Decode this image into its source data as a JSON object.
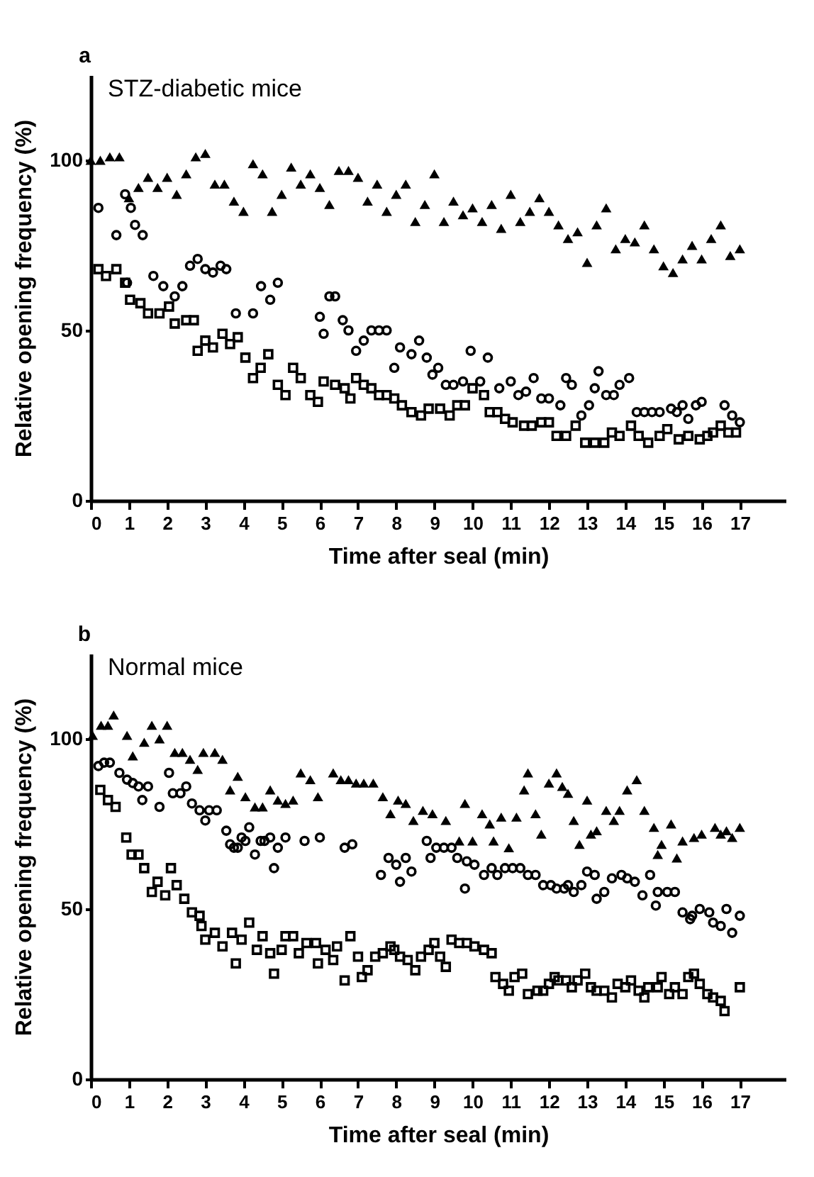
{
  "chart_data": [
    {
      "type": "scatter",
      "title": "STZ-diabetic mice",
      "annotations": [
        "a"
      ],
      "xlabel": "Time after seal (min)",
      "ylabel": "Relative opening frequency (%)",
      "xlim": [
        0,
        18.2
      ],
      "xticks": [
        0,
        1,
        2,
        3,
        4,
        5,
        6,
        7,
        8,
        9,
        10,
        11,
        12,
        13,
        14,
        15,
        16,
        17
      ],
      "ylim": [
        0,
        125
      ],
      "yticks": [
        0,
        50,
        100
      ],
      "grid": false,
      "legend": false,
      "series": [
        {
          "color": "#000000",
          "marker": "triangle",
          "x": [
            0,
            0.25,
            0.5,
            0.75,
            1,
            1.25,
            1.5,
            1.75,
            2,
            2.25,
            2.5,
            2.75,
            3,
            3.25,
            3.5,
            3.75,
            4,
            4.25,
            4.5,
            4.75,
            5,
            5.25,
            5.5,
            5.75,
            6,
            6.25,
            6.5,
            6.75,
            7,
            7.25,
            7.5,
            7.75,
            8,
            8.25,
            8.5,
            8.75,
            9,
            9.25,
            9.5,
            9.75,
            10,
            10.25,
            10.5,
            10.75,
            11,
            11.25,
            11.5,
            11.75,
            12,
            12.25,
            12.5,
            12.75,
            13,
            13.25,
            13.5,
            13.75,
            14,
            14.25,
            14.5,
            14.75,
            15,
            15.25,
            15.5,
            15.75,
            16,
            16.25,
            16.5,
            16.75,
            17
          ],
          "values": [
            100,
            100,
            101,
            101,
            89,
            92,
            95,
            92,
            95,
            90,
            96,
            101,
            102,
            93,
            93,
            88,
            85,
            99,
            96,
            85,
            90,
            98,
            93,
            96,
            92,
            87,
            97,
            97,
            95,
            88,
            93,
            85,
            90,
            93,
            82,
            87,
            96,
            82,
            88,
            84,
            86,
            82,
            87,
            80,
            90,
            82,
            85,
            89,
            85,
            81,
            77,
            79,
            70,
            81,
            86,
            74,
            77,
            76,
            81,
            74,
            69,
            67,
            71,
            75,
            71,
            77,
            81,
            72,
            74
          ]
        },
        {
          "color": "#000000",
          "marker": "circle",
          "x": [
            0.2,
            0.67,
            0.9,
            0.95,
            1.05,
            1.16,
            1.36,
            1.64,
            1.9,
            2.2,
            2.4,
            2.6,
            2.8,
            3.0,
            3.2,
            3.4,
            3.55,
            3.8,
            4.25,
            4.46,
            4.7,
            4.9,
            6.0,
            6.1,
            6.25,
            6.4,
            6.6,
            6.75,
            6.95,
            7.15,
            7.35,
            7.55,
            7.75,
            7.95,
            8.1,
            8.4,
            8.6,
            8.8,
            8.95,
            9.1,
            9.3,
            9.5,
            9.75,
            9.95,
            10.2,
            10.4,
            10.7,
            11.0,
            11.2,
            11.4,
            11.6,
            11.8,
            12.0,
            12.3,
            12.45,
            12.6,
            12.85,
            13.05,
            13.2,
            13.3,
            13.5,
            13.7,
            13.85,
            14.1,
            14.3,
            14.5,
            14.7,
            14.9,
            15.2,
            15.35,
            15.5,
            15.65,
            15.85,
            16.0,
            16.6,
            16.8,
            17.0
          ],
          "values": [
            86,
            78,
            90,
            64,
            86,
            81,
            78,
            66,
            63,
            60,
            63,
            69,
            71,
            68,
            67,
            69,
            68,
            55,
            55,
            63,
            59,
            64,
            54,
            49,
            60,
            60,
            53,
            50,
            44,
            47,
            50,
            50,
            50,
            39,
            45,
            43,
            47,
            42,
            37,
            39,
            34,
            34,
            35,
            44,
            35,
            42,
            33,
            35,
            31,
            32,
            36,
            30,
            30,
            28,
            36,
            34,
            25,
            28,
            33,
            38,
            31,
            31,
            34,
            36,
            26,
            26,
            26,
            26,
            27,
            26,
            28,
            24,
            28,
            29,
            28,
            25,
            23
          ]
        },
        {
          "color": "#000000",
          "marker": "square",
          "x": [
            0.2,
            0.4,
            0.67,
            0.9,
            1.03,
            1.3,
            1.5,
            1.8,
            2.05,
            2.2,
            2.5,
            2.7,
            2.8,
            3.0,
            3.2,
            3.45,
            3.65,
            3.85,
            4.05,
            4.25,
            4.45,
            4.65,
            4.9,
            5.1,
            5.3,
            5.5,
            5.75,
            5.95,
            6.1,
            6.4,
            6.65,
            6.8,
            6.95,
            7.15,
            7.35,
            7.55,
            7.75,
            7.95,
            8.15,
            8.4,
            8.65,
            8.85,
            9.15,
            9.4,
            9.6,
            9.8,
            10.0,
            10.3,
            10.45,
            10.65,
            10.85,
            11.05,
            11.35,
            11.55,
            11.8,
            12.0,
            12.2,
            12.45,
            12.7,
            12.95,
            13.2,
            13.45,
            13.65,
            13.85,
            14.15,
            14.35,
            14.6,
            14.9,
            15.1,
            15.4,
            15.65,
            15.95,
            16.15,
            16.3,
            16.5,
            16.7,
            16.9
          ],
          "values": [
            68,
            66,
            68,
            64,
            59,
            58,
            55,
            55,
            57,
            52,
            53,
            53,
            44,
            47,
            45,
            49,
            46,
            48,
            42,
            36,
            39,
            43,
            34,
            31,
            39,
            36,
            31,
            29,
            35,
            34,
            33,
            30,
            36,
            34,
            33,
            31,
            31,
            30,
            28,
            26,
            25,
            27,
            27,
            25,
            28,
            28,
            33,
            31,
            26,
            26,
            24,
            23,
            22,
            22,
            23,
            23,
            19,
            19,
            22,
            17,
            17,
            17,
            20,
            19,
            22,
            19,
            17,
            19,
            21,
            18,
            19,
            18,
            19,
            20,
            22,
            20,
            20
          ]
        }
      ]
    },
    {
      "type": "scatter",
      "title": "Normal mice",
      "annotations": [
        "b"
      ],
      "xlabel": "Time after seal (min)",
      "ylabel": "Relative opening frequency (%)",
      "xlim": [
        0,
        18.2
      ],
      "xticks": [
        0,
        1,
        2,
        3,
        4,
        5,
        6,
        7,
        8,
        9,
        10,
        11,
        12,
        13,
        14,
        15,
        16,
        17
      ],
      "ylim": [
        0,
        125
      ],
      "yticks": [
        0,
        50,
        100
      ],
      "grid": false,
      "legend": false,
      "series": [
        {
          "color": "#000000",
          "marker": "triangle",
          "x": [
            0.05,
            0.27,
            0.45,
            0.6,
            0.95,
            1.1,
            1.4,
            1.6,
            1.8,
            2.0,
            2.2,
            2.4,
            2.6,
            2.8,
            2.95,
            3.25,
            3.45,
            3.65,
            3.85,
            4.05,
            4.3,
            4.5,
            4.7,
            4.9,
            5.1,
            5.3,
            5.5,
            5.75,
            5.95,
            6.35,
            6.55,
            6.75,
            6.95,
            7.15,
            7.4,
            7.65,
            7.85,
            8.05,
            8.25,
            8.45,
            8.7,
            8.95,
            9.3,
            9.65,
            9.8,
            10.0,
            10.25,
            10.45,
            10.55,
            10.75,
            10.95,
            11.15,
            11.35,
            11.45,
            11.65,
            11.8,
            12.0,
            12.2,
            12.35,
            12.5,
            12.65,
            12.8,
            13.0,
            13.1,
            13.25,
            13.5,
            13.7,
            13.85,
            14.05,
            14.3,
            14.5,
            14.75,
            14.85,
            14.95,
            15.2,
            15.35,
            15.5,
            15.8,
            16.0,
            16.35,
            16.5,
            16.65,
            16.8,
            17.0
          ],
          "values": [
            101,
            104,
            104,
            107,
            101,
            95,
            99,
            104,
            100,
            104,
            96,
            96,
            94,
            91,
            96,
            96,
            94,
            85,
            89,
            83,
            80,
            80,
            85,
            82,
            81,
            82,
            90,
            88,
            83,
            90,
            88,
            88,
            87,
            87,
            87,
            83,
            78,
            82,
            81,
            76,
            79,
            78,
            76,
            70,
            81,
            70,
            78,
            75,
            70,
            77,
            68,
            77,
            85,
            90,
            78,
            72,
            87,
            90,
            86,
            84,
            76,
            69,
            82,
            72,
            73,
            79,
            76,
            79,
            85,
            88,
            79,
            74,
            66,
            69,
            75,
            65,
            70,
            71,
            72,
            74,
            72,
            73,
            71,
            74
          ]
        },
        {
          "color": "#000000",
          "marker": "circle",
          "x": [
            0.2,
            0.35,
            0.5,
            0.75,
            0.95,
            1.1,
            1.25,
            1.35,
            1.5,
            1.8,
            2.05,
            2.15,
            2.35,
            2.5,
            2.65,
            2.85,
            3.0,
            3.1,
            3.3,
            3.55,
            3.65,
            3.75,
            3.85,
            3.95,
            4.05,
            4.15,
            4.3,
            4.45,
            4.55,
            4.7,
            4.8,
            4.9,
            5.1,
            5.6,
            6.0,
            6.65,
            6.85,
            7.6,
            7.8,
            8.0,
            8.1,
            8.25,
            8.4,
            8.8,
            8.9,
            9.05,
            9.25,
            9.45,
            9.6,
            9.8,
            9.85,
            10.05,
            10.3,
            10.5,
            10.65,
            10.85,
            11.05,
            11.25,
            11.45,
            11.65,
            11.85,
            12.05,
            12.2,
            12.4,
            12.5,
            12.65,
            12.85,
            13.0,
            13.2,
            13.25,
            13.45,
            13.65,
            13.9,
            14.05,
            14.25,
            14.45,
            14.65,
            14.8,
            14.85,
            15.1,
            15.3,
            15.5,
            15.7,
            15.75,
            15.95,
            16.2,
            16.3,
            16.5,
            16.65,
            16.8,
            17.0
          ],
          "values": [
            92,
            93,
            93,
            90,
            88,
            87,
            86,
            82,
            86,
            80,
            90,
            84,
            84,
            86,
            81,
            79,
            76,
            79,
            79,
            73,
            69,
            68,
            68,
            71,
            70,
            74,
            66,
            70,
            70,
            71,
            62,
            68,
            71,
            70,
            71,
            68,
            69,
            60,
            65,
            63,
            58,
            65,
            61,
            70,
            65,
            68,
            68,
            68,
            65,
            56,
            64,
            63,
            60,
            62,
            60,
            62,
            62,
            62,
            60,
            60,
            57,
            57,
            56,
            56,
            57,
            55,
            57,
            61,
            60,
            53,
            55,
            59,
            60,
            59,
            58,
            54,
            60,
            51,
            55,
            55,
            55,
            49,
            47,
            48,
            50,
            49,
            46,
            45,
            50,
            43,
            48
          ]
        },
        {
          "color": "#000000",
          "marker": "square",
          "x": [
            0.25,
            0.45,
            0.65,
            0.93,
            1.07,
            1.25,
            1.4,
            1.6,
            1.75,
            1.95,
            2.1,
            2.25,
            2.45,
            2.65,
            2.85,
            2.9,
            3.0,
            3.25,
            3.45,
            3.7,
            3.8,
            3.95,
            4.15,
            4.35,
            4.5,
            4.7,
            4.8,
            5.0,
            5.1,
            5.3,
            5.45,
            5.65,
            5.9,
            5.95,
            6.15,
            6.35,
            6.45,
            6.65,
            6.8,
            7.0,
            7.1,
            7.25,
            7.45,
            7.65,
            7.85,
            7.95,
            8.1,
            8.3,
            8.5,
            8.65,
            8.85,
            9.0,
            9.15,
            9.3,
            9.45,
            9.65,
            9.85,
            10.05,
            10.3,
            10.5,
            10.6,
            10.8,
            10.95,
            11.1,
            11.3,
            11.45,
            11.7,
            11.85,
            12.0,
            12.15,
            12.25,
            12.45,
            12.6,
            12.75,
            12.95,
            13.1,
            13.25,
            13.45,
            13.65,
            13.8,
            14.0,
            14.15,
            14.35,
            14.5,
            14.6,
            14.85,
            14.95,
            15.15,
            15.3,
            15.5,
            15.65,
            15.8,
            15.95,
            16.15,
            16.3,
            16.5,
            16.6,
            17.0
          ],
          "values": [
            85,
            82,
            80,
            71,
            66,
            66,
            62,
            55,
            58,
            54,
            62,
            57,
            53,
            49,
            48,
            45,
            41,
            43,
            39,
            43,
            34,
            41,
            46,
            38,
            42,
            37,
            31,
            38,
            42,
            42,
            37,
            40,
            40,
            34,
            38,
            35,
            39,
            29,
            42,
            36,
            30,
            32,
            36,
            37,
            39,
            38,
            36,
            35,
            32,
            36,
            38,
            40,
            36,
            33,
            41,
            40,
            40,
            39,
            38,
            37,
            30,
            28,
            26,
            30,
            31,
            25,
            26,
            26,
            28,
            30,
            29,
            29,
            27,
            29,
            31,
            27,
            26,
            26,
            24,
            28,
            27,
            29,
            26,
            24,
            27,
            27,
            30,
            25,
            27,
            25,
            30,
            31,
            28,
            25,
            24,
            23,
            20,
            27
          ]
        }
      ]
    }
  ]
}
